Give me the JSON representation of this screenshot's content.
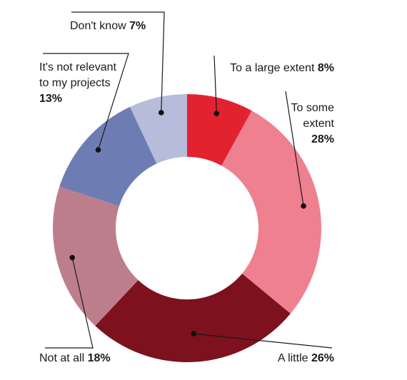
{
  "chart_data": {
    "type": "pie",
    "subtype": "donut",
    "legend": "none",
    "slices": [
      {
        "label": "To a large extent",
        "label_lines": [
          "To a large extent"
        ],
        "value": 8,
        "value_label": "8%",
        "color": "#e32230"
      },
      {
        "label": "To some extent",
        "label_lines": [
          "To some",
          "extent"
        ],
        "value": 28,
        "value_label": "28%",
        "color": "#ef8090"
      },
      {
        "label": "A little",
        "label_lines": [
          "A little"
        ],
        "value": 26,
        "value_label": "26%",
        "color": "#7d111e"
      },
      {
        "label": "Not at all",
        "label_lines": [
          "Not at all"
        ],
        "value": 18,
        "value_label": "18%",
        "color": "#bd7e8b"
      },
      {
        "label": "It's not relevant to my projects",
        "label_lines": [
          "It's not relevant",
          "to my projects"
        ],
        "value": 13,
        "value_label": "13%",
        "color": "#6d7db4"
      },
      {
        "label": "Don't know",
        "label_lines": [
          "Don't know"
        ],
        "value": 7,
        "value_label": "7%",
        "color": "#b6bcda"
      }
    ]
  }
}
